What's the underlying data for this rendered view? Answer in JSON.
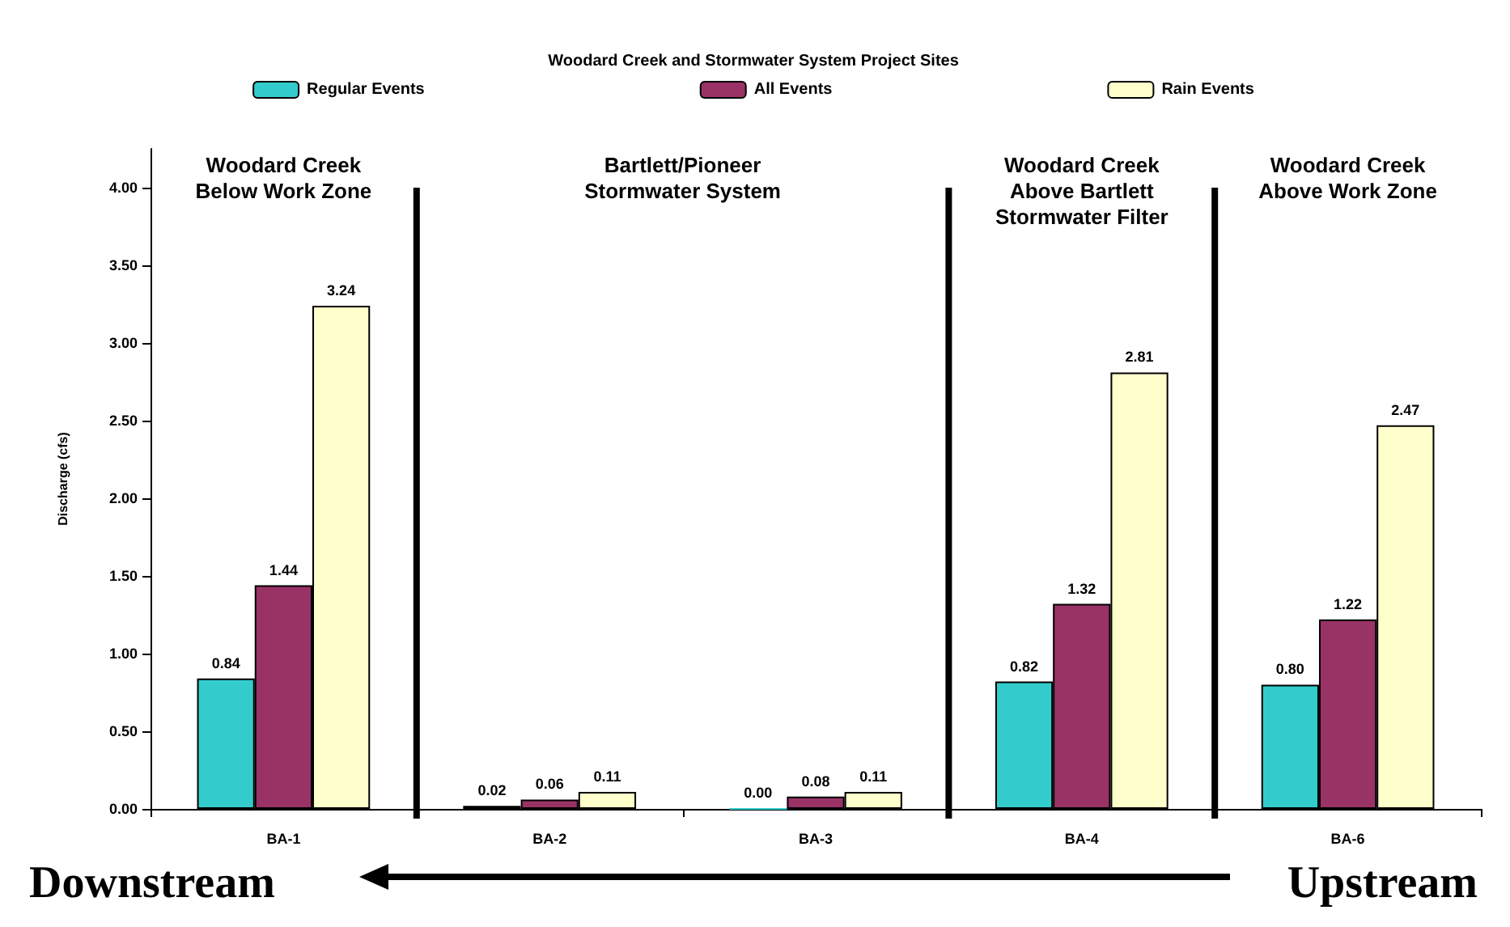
{
  "chart_data": {
    "type": "bar",
    "legend_title": "Woodard Creek and Stormwater System Project Sites",
    "ylabel": "Discharge (cfs)",
    "categories": [
      "BA-1",
      "BA-2",
      "BA-3",
      "BA-4",
      "BA-6"
    ],
    "series": [
      {
        "name": "Regular Events",
        "color": "#33cccc",
        "values": [
          0.84,
          0.02,
          0.0,
          0.82,
          0.8
        ],
        "value_labels": [
          "0.84",
          "0.02",
          "0.00",
          "0.82",
          "0.80"
        ]
      },
      {
        "name": "All Events",
        "color": "#993366",
        "values": [
          1.44,
          0.06,
          0.08,
          1.32,
          1.22
        ],
        "value_labels": [
          "1.44",
          "0.06",
          "0.08",
          "1.32",
          "1.22"
        ]
      },
      {
        "name": "Rain Events",
        "color": "#ffffcc",
        "values": [
          3.24,
          0.11,
          0.11,
          2.81,
          2.47
        ],
        "value_labels": [
          "3.24",
          "0.11",
          "0.11",
          "2.81",
          "2.47"
        ]
      }
    ],
    "ylim": [
      0,
      4.25
    ],
    "yticks": [
      {
        "value": 0,
        "label": "0.00"
      },
      {
        "value": 0.5,
        "label": "0.50"
      },
      {
        "value": 1,
        "label": "1.00"
      },
      {
        "value": 1.5,
        "label": "1.50"
      },
      {
        "value": 2,
        "label": "2.00"
      },
      {
        "value": 2.5,
        "label": "2.50"
      },
      {
        "value": 3,
        "label": "3.00"
      },
      {
        "value": 3.5,
        "label": "3.50"
      },
      {
        "value": 4,
        "label": "4.00"
      }
    ],
    "grid": false,
    "legend": "top",
    "annotations": [
      "Woodard Creek\nBelow Work Zone",
      "Bartlett/Pioneer\nStormwater System",
      "Woodard Creek\nAbove Bartlett\nStormwater Filter",
      "Woodard Creek\nAbove Work Zone",
      "Downstream",
      "Upstream"
    ]
  }
}
